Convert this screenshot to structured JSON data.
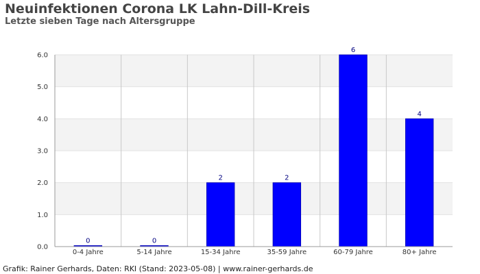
{
  "header": {
    "title": "Neuinfektionen Corona LK Lahn-Dill-Kreis",
    "subtitle": "Letzte sieben Tage nach Altersgruppe"
  },
  "footer": {
    "text": "Grafik: Rainer Gerhards, Daten: RKI (Stand: 2023-05-08) | www.rainer-gerhards.de"
  },
  "chart_data": {
    "type": "bar",
    "title": "Neuinfektionen Corona LK Lahn-Dill-Kreis",
    "subtitle": "Letzte sieben Tage nach Altersgruppe",
    "categories": [
      "0-4 Jahre",
      "5-14 Jahre",
      "15-34 Jahre",
      "35-59 Jahre",
      "60-79 Jahre",
      "80+ Jahre"
    ],
    "values": [
      0,
      0,
      2,
      2,
      6,
      4
    ],
    "data_labels": [
      "0",
      "0",
      "2",
      "2",
      "6",
      "4"
    ],
    "ylim": [
      0,
      6
    ],
    "yticks": [
      "0.0",
      "1.0",
      "2.0",
      "3.0",
      "4.0",
      "5.0",
      "6.0"
    ],
    "xlabel": "",
    "ylabel": "",
    "grid": true,
    "bar_color": "#0000ff",
    "band_color": "#f3f3f3",
    "label_color": "#000080"
  }
}
